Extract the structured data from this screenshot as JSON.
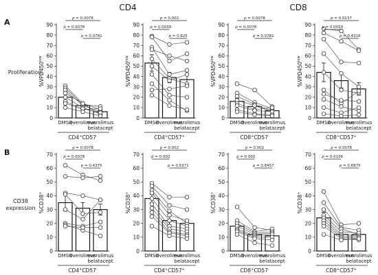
{
  "figure": {
    "column_titles": [
      "CD4",
      "CD8"
    ],
    "row_letters": [
      "A",
      "B"
    ],
    "row_labels": [
      [
        "Proliferation"
      ],
      [
        "CD38",
        "expression"
      ]
    ]
  },
  "chart_data": [
    {
      "type": "bar",
      "row": 0,
      "col": 0,
      "categories": [
        "DMSO",
        "everolimus",
        "everolimus belatacept"
      ],
      "ylabel_main": "%VPD450",
      "ylabel_sup": "low",
      "xgroup_main": "CD4",
      "xgroup_sup": "+",
      "xgroup_mid": "CD57",
      "xgroup_sup2": "-",
      "ylim": [
        0,
        90
      ],
      "yticks": [
        0,
        10,
        20,
        30,
        40,
        50,
        60,
        70,
        80,
        90
      ],
      "values": [
        20,
        12,
        6
      ],
      "errors": [
        4,
        2.5,
        2
      ],
      "pvals": [
        {
          "from": 0,
          "to": 2,
          "label": "p = 0.0078"
        },
        {
          "from": 0,
          "to": 1,
          "label": "p = 0.0078"
        },
        {
          "from": 1,
          "to": 2,
          "label": "p = 0.0781"
        }
      ],
      "donors": [
        [
          31,
          14,
          8
        ],
        [
          29,
          13,
          11
        ],
        [
          27,
          12,
          6
        ],
        [
          24,
          14,
          3
        ],
        [
          20,
          10,
          4
        ],
        [
          16,
          8,
          9
        ],
        [
          14,
          9,
          5
        ],
        [
          10,
          6,
          2
        ]
      ]
    },
    {
      "type": "bar",
      "row": 0,
      "col": 1,
      "categories": [
        "DMSO",
        "everolimus",
        "everolimus belatacept"
      ],
      "ylabel_main": "%VPD450",
      "ylabel_sup": "low",
      "xgroup_main": "CD4",
      "xgroup_sup": "+",
      "xgroup_mid": "CD57",
      "xgroup_sup2": "+",
      "ylim": [
        0,
        90
      ],
      "yticks": [
        0,
        10,
        20,
        30,
        40,
        50,
        60,
        70,
        80,
        90
      ],
      "values": [
        53,
        39,
        37
      ],
      "errors": [
        8,
        5,
        5
      ],
      "pvals": [
        {
          "from": 0,
          "to": 2,
          "label": "p = 0.002"
        },
        {
          "from": 0,
          "to": 1,
          "label": "p = 0.0039"
        },
        {
          "from": 1,
          "to": 2,
          "label": "p = 0.625"
        }
      ],
      "donors": [
        [
          79,
          71,
          73
        ],
        [
          78,
          55,
          62
        ],
        [
          68,
          42,
          46
        ],
        [
          66,
          60,
          55
        ],
        [
          57,
          38,
          33
        ],
        [
          50,
          36,
          42
        ],
        [
          42,
          22,
          20
        ],
        [
          33,
          17,
          7
        ],
        [
          27,
          28,
          31
        ],
        [
          22,
          12,
          8
        ]
      ]
    },
    {
      "type": "bar",
      "row": 0,
      "col": 2,
      "categories": [
        "DMSO",
        "everolimus",
        "everolimus belatacept"
      ],
      "ylabel_main": "%VPD450",
      "ylabel_sup": "low",
      "xgroup_main": "CD8",
      "xgroup_sup": "+",
      "xgroup_mid": "CD57",
      "xgroup_sup2": "-",
      "ylim": [
        0,
        90
      ],
      "yticks": [
        0,
        10,
        20,
        30,
        40,
        50,
        60,
        70,
        80,
        90
      ],
      "values": [
        16,
        11,
        7
      ],
      "errors": [
        3,
        2.5,
        1.5
      ],
      "pvals": [
        {
          "from": 0,
          "to": 2,
          "label": "p = 0.0078"
        },
        {
          "from": 0,
          "to": 1,
          "label": "p = 0.0078"
        },
        {
          "from": 1,
          "to": 2,
          "label": "p = 0.0781"
        }
      ],
      "donors": [
        [
          33,
          27,
          11
        ],
        [
          24,
          15,
          9
        ],
        [
          21,
          13,
          7
        ],
        [
          17,
          12,
          6
        ],
        [
          14,
          8,
          10
        ],
        [
          12,
          7,
          6
        ],
        [
          8,
          4,
          3
        ],
        [
          6,
          3,
          2
        ]
      ]
    },
    {
      "type": "bar",
      "row": 0,
      "col": 3,
      "categories": [
        "DMSO",
        "everolimus",
        "everolimus belatacept"
      ],
      "ylabel_main": "%VPD450",
      "ylabel_sup": "low",
      "xgroup_main": "CD8",
      "xgroup_sup": "+",
      "xgroup_mid": "CD57",
      "xgroup_sup2": "+",
      "ylim": [
        0,
        90
      ],
      "yticks": [
        0,
        10,
        20,
        30,
        40,
        50,
        60,
        70,
        80,
        90
      ],
      "values": [
        44,
        36,
        28
      ],
      "errors": [
        9,
        7,
        6
      ],
      "pvals": [
        {
          "from": 0,
          "to": 2,
          "label": "p = 0.0137"
        },
        {
          "from": 0,
          "to": 1,
          "label": "p = 0.0059"
        },
        {
          "from": 1,
          "to": 2,
          "label": "p = 0.4316"
        }
      ],
      "donors": [
        [
          86,
          84,
          66
        ],
        [
          82,
          74,
          65
        ],
        [
          76,
          54,
          53
        ],
        [
          62,
          43,
          30
        ],
        [
          44,
          27,
          24
        ],
        [
          27,
          14,
          26
        ],
        [
          23,
          17,
          16
        ],
        [
          18,
          11,
          7
        ],
        [
          10,
          5,
          10
        ],
        [
          4,
          2,
          3
        ]
      ]
    },
    {
      "type": "bar",
      "row": 1,
      "col": 0,
      "categories": [
        "DMSO",
        "everolimus",
        "everolimus belatacept"
      ],
      "ylabel_main": "%CD38",
      "ylabel_sup": "+",
      "xgroup_main": "CD4",
      "xgroup_sup": "+",
      "xgroup_mid": "CD57",
      "xgroup_sup2": "-",
      "ylim": [
        0,
        70
      ],
      "yticks": [
        0,
        10,
        20,
        30,
        40,
        50,
        60,
        70
      ],
      "values": [
        35,
        31,
        30
      ],
      "errors": [
        6,
        4,
        4
      ],
      "pvals": [
        {
          "from": 0,
          "to": 2,
          "label": "p = 0.0078"
        },
        {
          "from": 0,
          "to": 1,
          "label": "p = 0.0078"
        },
        {
          "from": 1,
          "to": 2,
          "label": "p = 0.4375"
        }
      ],
      "donors": [
        [
          62,
          55,
          51
        ],
        [
          54,
          53,
          54
        ],
        [
          42,
          40,
          37
        ],
        [
          41,
          27,
          28
        ],
        [
          30,
          23,
          37
        ],
        [
          20,
          18,
          21
        ],
        [
          19,
          15,
          11
        ],
        [
          18,
          17,
          17
        ]
      ]
    },
    {
      "type": "bar",
      "row": 1,
      "col": 1,
      "categories": [
        "DMSO",
        "everolimus",
        "everolimus belatacept"
      ],
      "ylabel_main": "%CD38",
      "ylabel_sup": "+",
      "xgroup_main": "CD4",
      "xgroup_sup": "+",
      "xgroup_mid": "CD57",
      "xgroup_sup2": "+",
      "ylim": [
        0,
        70
      ],
      "yticks": [
        0,
        10,
        20,
        30,
        40,
        50,
        60,
        70
      ],
      "values": [
        38,
        22,
        20
      ],
      "errors": [
        3,
        3,
        2
      ],
      "pvals": [
        {
          "from": 0,
          "to": 2,
          "label": "p = 0.002"
        },
        {
          "from": 0,
          "to": 1,
          "label": "p = 0.002"
        },
        {
          "from": 1,
          "to": 2,
          "label": "p = 0.5371"
        }
      ],
      "donors": [
        [
          49,
          39,
          39
        ],
        [
          47,
          33,
          30
        ],
        [
          44,
          29,
          20
        ],
        [
          42,
          26,
          22
        ],
        [
          38,
          22,
          18
        ],
        [
          34,
          18,
          16
        ],
        [
          31,
          16,
          14
        ],
        [
          28,
          14,
          12
        ],
        [
          25,
          13,
          11
        ],
        [
          18,
          11,
          9
        ]
      ]
    },
    {
      "type": "bar",
      "row": 1,
      "col": 2,
      "categories": [
        "DMSO",
        "everolimus",
        "everolimus belatacept"
      ],
      "ylabel_main": "%CD38",
      "ylabel_sup": "+",
      "xgroup_main": "CD8",
      "xgroup_sup": "+",
      "xgroup_mid": "CD57",
      "xgroup_sup2": "-",
      "ylim": [
        0,
        70
      ],
      "yticks": [
        0,
        10,
        20,
        30,
        40,
        50,
        60,
        70
      ],
      "values": [
        18,
        12,
        11
      ],
      "errors": [
        2,
        1.5,
        1.5
      ],
      "pvals": [
        {
          "from": 0,
          "to": 2,
          "label": "p = 0.002"
        },
        {
          "from": 0,
          "to": 1,
          "label": "p = 0.002"
        },
        {
          "from": 1,
          "to": 2,
          "label": "p = 0.8457"
        }
      ],
      "donors": [
        [
          32,
          17,
          15
        ],
        [
          22,
          14,
          16
        ],
        [
          20,
          13,
          14
        ],
        [
          18,
          12,
          13
        ],
        [
          16,
          11,
          12
        ],
        [
          15,
          10,
          10
        ],
        [
          14,
          9,
          8
        ],
        [
          12,
          6,
          4
        ]
      ]
    },
    {
      "type": "bar",
      "row": 1,
      "col": 3,
      "categories": [
        "DMSO",
        "everolimus",
        "everolimus belatacept"
      ],
      "ylabel_main": "%CD38",
      "ylabel_sup": "+",
      "xgroup_main": "CD8",
      "xgroup_sup": "+",
      "xgroup_mid": "CD57",
      "xgroup_sup2": "+",
      "ylim": [
        0,
        70
      ],
      "yticks": [
        0,
        10,
        20,
        30,
        40,
        50,
        60,
        70
      ],
      "values": [
        24,
        12,
        12
      ],
      "errors": [
        4,
        1.5,
        1.5
      ],
      "pvals": [
        {
          "from": 0,
          "to": 2,
          "label": "p = 0.0078"
        },
        {
          "from": 0,
          "to": 1,
          "label": "p = 0.0156"
        },
        {
          "from": 1,
          "to": 2,
          "label": "p = 0.6875"
        }
      ],
      "donors": [
        [
          43,
          19,
          20
        ],
        [
          35,
          17,
          15
        ],
        [
          30,
          16,
          12
        ],
        [
          26,
          14,
          13
        ],
        [
          24,
          12,
          11
        ],
        [
          22,
          11,
          10
        ],
        [
          20,
          10,
          9
        ],
        [
          18,
          9,
          8
        ],
        [
          12,
          8,
          9
        ]
      ]
    }
  ]
}
